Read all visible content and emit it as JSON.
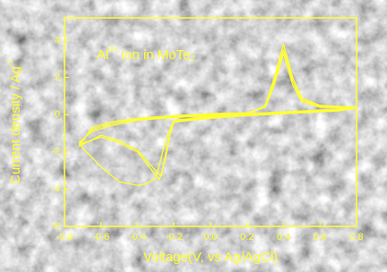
{
  "chart_data": {
    "type": "line",
    "annotation": [
      "Al",
      "3+",
      " ion in MoTe",
      "2"
    ],
    "xlabel": "Voltage(V, vs Ag/AgCl)",
    "ylabel": [
      "Current density / Ag",
      "-1"
    ],
    "xlim": [
      -0.8,
      0.8
    ],
    "ylim": [
      -6,
      5.2
    ],
    "xticks": [
      -0.8,
      -0.6,
      -0.4,
      -0.2,
      {
        "value": 0,
        "label": "0.0"
      },
      0.2,
      0.4,
      0.6,
      0.8
    ],
    "yticks": [
      -6,
      -4,
      -2,
      0,
      2,
      4
    ],
    "series": [
      {
        "color": "#ffff33",
        "x": [
          -0.72,
          -0.65,
          -0.55,
          -0.4,
          -0.2,
          0,
          0.2,
          0.3,
          0.35,
          0.4,
          0.45,
          0.5,
          0.6,
          0.8,
          0.7,
          0.5,
          0.3,
          0.2,
          0,
          -0.2,
          -0.24,
          -0.3,
          -0.35,
          -0.4,
          -0.5,
          -0.6,
          -0.7,
          -0.72
        ],
        "values": [
          -1.5,
          -0.9,
          -0.6,
          -0.3,
          -0.15,
          -0.05,
          0,
          0.5,
          2,
          3.8,
          2,
          0.9,
          0.5,
          0.4,
          0.3,
          0.2,
          0.1,
          0.05,
          -0.1,
          -0.3,
          -1.2,
          -3.4,
          -3.7,
          -3.8,
          -3.6,
          -2.8,
          -1.8,
          -1.5
        ]
      },
      {
        "color": "#ffff33",
        "x": [
          -0.72,
          -0.65,
          -0.55,
          -0.4,
          -0.2,
          0,
          0.2,
          0.3,
          0.35,
          0.4,
          0.45,
          0.5,
          0.6,
          0.8,
          0.7,
          0.5,
          0.3,
          0.2,
          0,
          -0.2,
          -0.22,
          -0.25,
          -0.28,
          -0.32,
          -0.4,
          -0.5,
          -0.6,
          -0.72
        ],
        "values": [
          -1.6,
          -0.8,
          -0.5,
          -0.25,
          -0.1,
          0,
          0.05,
          0.45,
          1.8,
          3.5,
          1.8,
          0.8,
          0.45,
          0.4,
          0.25,
          0.15,
          0.05,
          0,
          -0.15,
          -0.35,
          -1,
          -2.5,
          -3.5,
          -3,
          -2,
          -1.5,
          -1.2,
          -1.6
        ]
      },
      {
        "color": "#ffff33",
        "x": [
          -0.72,
          -0.65,
          -0.55,
          -0.4,
          -0.2,
          0,
          0.2,
          0.3,
          0.35,
          0.4,
          0.45,
          0.5,
          0.6,
          0.8,
          0.7,
          0.5,
          0.3,
          0.2,
          0,
          -0.2,
          -0.22,
          -0.25,
          -0.27,
          -0.31,
          -0.4,
          -0.5,
          -0.6,
          -0.72
        ],
        "values": [
          -1.7,
          -0.7,
          -0.4,
          -0.2,
          -0.05,
          0.05,
          0.1,
          0.4,
          1.6,
          3.3,
          1.6,
          0.7,
          0.4,
          0.35,
          0.2,
          0.1,
          0,
          -0.05,
          -0.2,
          -0.4,
          -0.9,
          -2.3,
          -3.3,
          -2.9,
          -1.9,
          -1.4,
          -1.1,
          -1.7
        ]
      }
    ]
  }
}
